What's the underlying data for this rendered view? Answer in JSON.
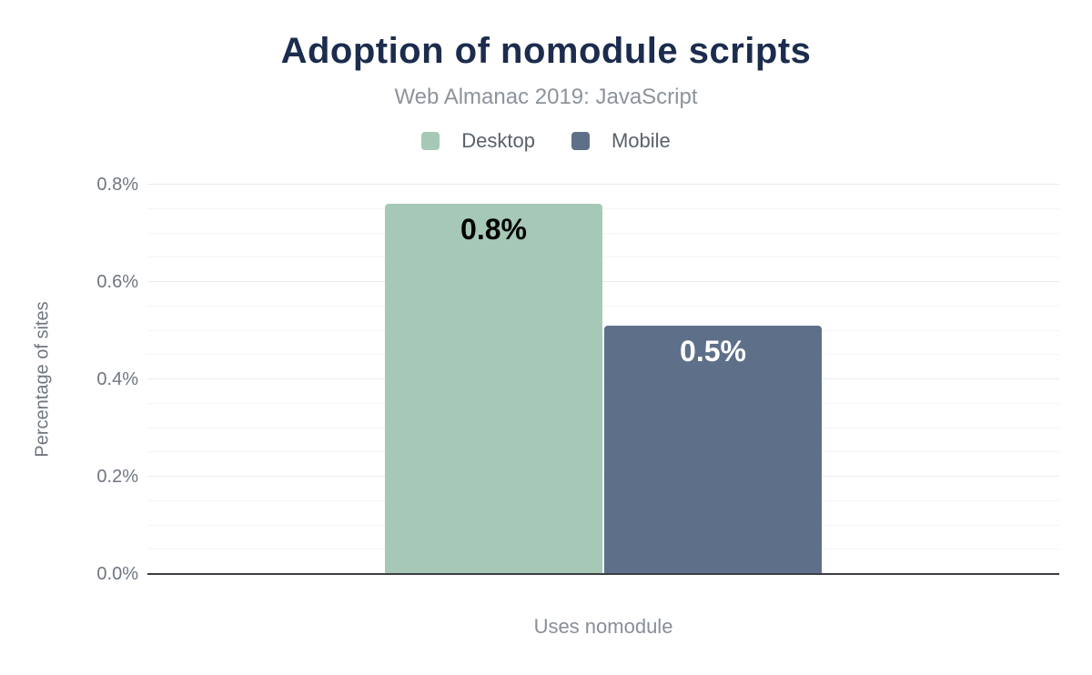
{
  "chart_data": {
    "type": "bar",
    "title": "Adoption of nomodule scripts",
    "subtitle": "Web Almanac 2019: JavaScript",
    "categories": [
      "Uses nomodule"
    ],
    "xlabel": "Uses nomodule",
    "ylabel": "Percentage of sites",
    "ylim": [
      0,
      0.8
    ],
    "grid": true,
    "minor_grid_step": 0.05,
    "legend_position": "top",
    "yticks": [
      {
        "value": 0.0,
        "label": "0.0%"
      },
      {
        "value": 0.2,
        "label": "0.2%"
      },
      {
        "value": 0.4,
        "label": "0.4%"
      },
      {
        "value": 0.6,
        "label": "0.6%"
      },
      {
        "value": 0.8,
        "label": "0.8%"
      }
    ],
    "series": [
      {
        "name": "Desktop",
        "values": [
          0.76
        ],
        "value_labels": [
          "0.8%"
        ],
        "color": "#a6c9b7",
        "value_label_color": "#000000"
      },
      {
        "name": "Mobile",
        "values": [
          0.51
        ],
        "value_labels": [
          "0.5%"
        ],
        "color": "#5e7089",
        "value_label_color": "#ffffff"
      }
    ]
  },
  "colors": {
    "background": "#ffffff",
    "title_text": "#1b2c4e",
    "subtitle_text": "#8d939b",
    "legend_text": "#5a616b",
    "axis_text": "#6f7680",
    "x_label_text": "#878e97",
    "axis_line": "#3b3d42",
    "gridline_major": "#e8eaed",
    "gridline_minor": "#f4f5f6"
  }
}
